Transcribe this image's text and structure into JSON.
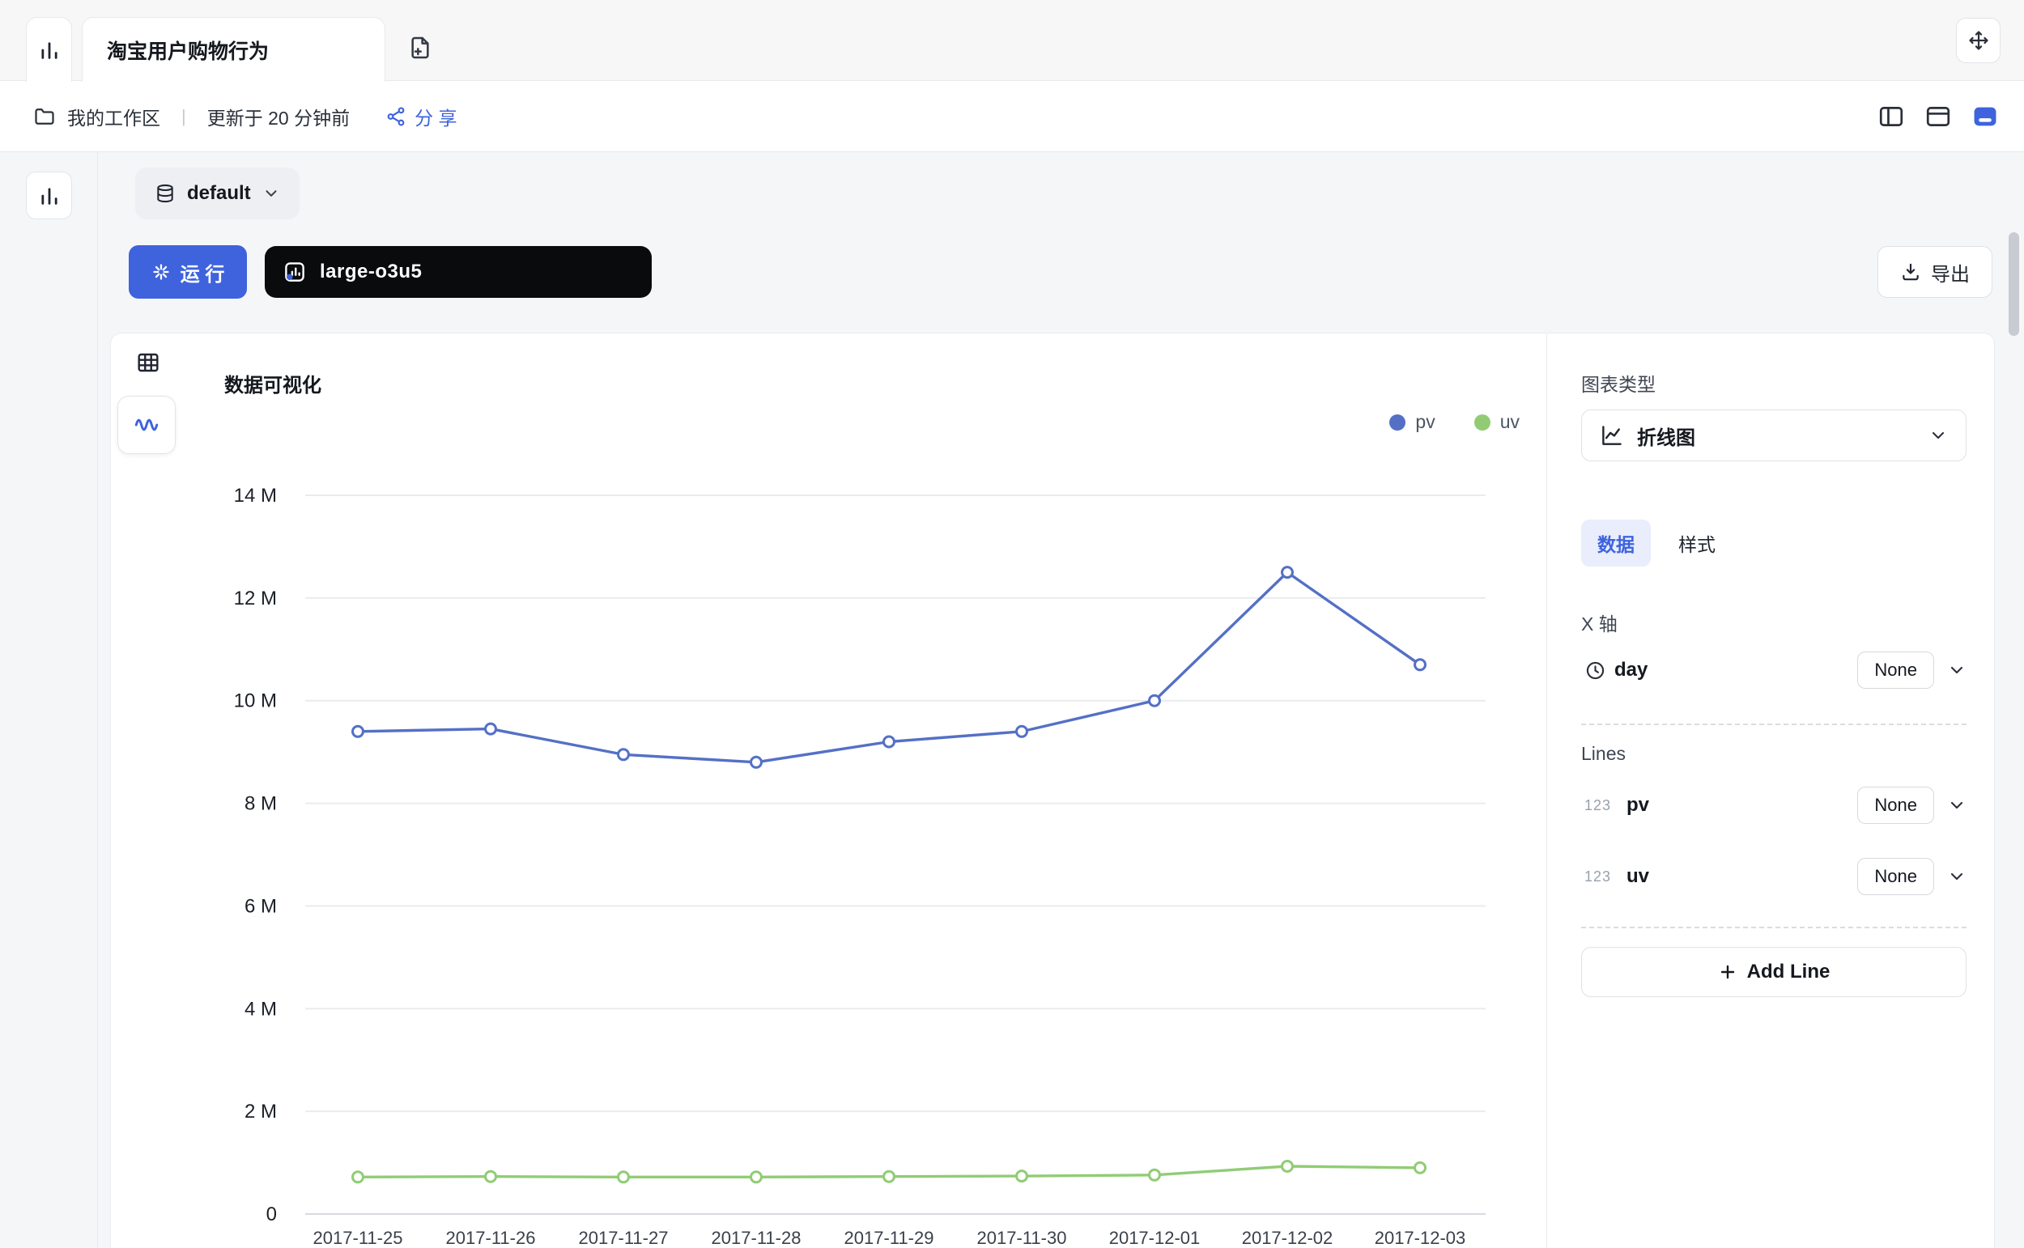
{
  "colors": {
    "accent": "#3E63DD",
    "pv": "#5470C6",
    "uv": "#91CC75"
  },
  "tab_bar": {
    "active_tab": "淘宝用户购物行为"
  },
  "toolbar": {
    "workspace": "我的工作区",
    "separator": "|",
    "updated": "更新于 20 分钟前",
    "share": "分 享"
  },
  "query_bar": {
    "dataset": "default",
    "run": "运 行",
    "model": "large-o3u5",
    "export": "导出"
  },
  "chart_panel": {
    "title": "数据可视化",
    "legend": [
      {
        "label": "pv",
        "color": "#5470C6"
      },
      {
        "label": "uv",
        "color": "#91CC75"
      }
    ]
  },
  "config_panel": {
    "chart_type_label": "图表类型",
    "chart_type_value": "折线图",
    "tabs": [
      {
        "label": "数据"
      },
      {
        "label": "样式"
      }
    ],
    "x_axis_label": "X 轴",
    "x_axis_field": "day",
    "x_axis_agg": "None",
    "lines_label": "Lines",
    "lines": [
      {
        "type": "123",
        "field": "pv",
        "agg": "None"
      },
      {
        "type": "123",
        "field": "uv",
        "agg": "None"
      }
    ],
    "add_line": "Add Line"
  },
  "chart_data": {
    "type": "line",
    "title": "数据可视化",
    "x": [
      "2017-11-25",
      "2017-11-26",
      "2017-11-27",
      "2017-11-28",
      "2017-11-29",
      "2017-11-30",
      "2017-12-01",
      "2017-12-02",
      "2017-12-03"
    ],
    "series": [
      {
        "name": "pv",
        "color": "#5470C6",
        "values": [
          9400000,
          9450000,
          8950000,
          8800000,
          9200000,
          9400000,
          10000000,
          12500000,
          10700000
        ]
      },
      {
        "name": "uv",
        "color": "#91CC75",
        "values": [
          720000,
          730000,
          720000,
          720000,
          730000,
          740000,
          760000,
          930000,
          900000
        ]
      }
    ],
    "ylim": [
      0,
      14000000
    ],
    "y_ticks": [
      0,
      2000000,
      4000000,
      6000000,
      8000000,
      10000000,
      12000000,
      14000000
    ],
    "y_tick_labels": [
      "0",
      "2 M",
      "4 M",
      "6 M",
      "8 M",
      "10 M",
      "12 M",
      "14 M"
    ],
    "grid": true,
    "legend_position": "top-right"
  }
}
